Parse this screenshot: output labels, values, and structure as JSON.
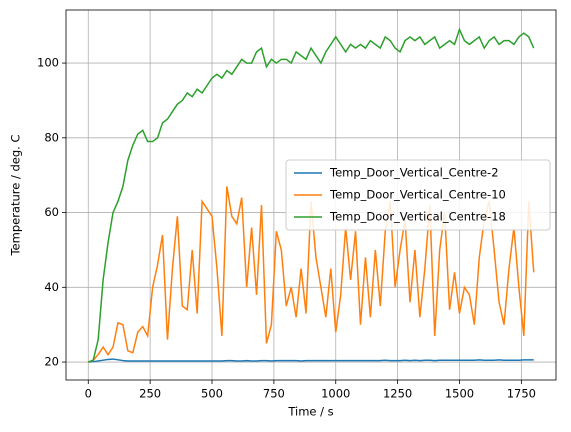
{
  "chart_data": {
    "type": "line",
    "xlabel": "Time / s",
    "ylabel": "Temperature / deg. C",
    "x": [
      0,
      20,
      40,
      60,
      80,
      100,
      120,
      140,
      160,
      180,
      200,
      220,
      240,
      260,
      280,
      300,
      320,
      340,
      360,
      380,
      400,
      420,
      440,
      460,
      480,
      500,
      520,
      540,
      560,
      580,
      600,
      620,
      640,
      660,
      680,
      700,
      720,
      740,
      760,
      780,
      800,
      820,
      840,
      860,
      880,
      900,
      920,
      940,
      960,
      980,
      1000,
      1020,
      1040,
      1060,
      1080,
      1100,
      1120,
      1140,
      1160,
      1180,
      1200,
      1220,
      1240,
      1260,
      1280,
      1300,
      1320,
      1340,
      1360,
      1380,
      1400,
      1420,
      1440,
      1460,
      1480,
      1500,
      1520,
      1540,
      1560,
      1580,
      1600,
      1620,
      1640,
      1660,
      1680,
      1700,
      1720,
      1740,
      1760,
      1780,
      1800
    ],
    "series": [
      {
        "name": "Temp_Door_Vertical_Centre-2",
        "color": "#1f77b4",
        "values": [
          20,
          20.1,
          20.3,
          20.5,
          20.7,
          20.8,
          20.6,
          20.4,
          20.3,
          20.3,
          20.3,
          20.3,
          20.3,
          20.3,
          20.3,
          20.3,
          20.3,
          20.3,
          20.3,
          20.3,
          20.3,
          20.3,
          20.3,
          20.3,
          20.3,
          20.3,
          20.3,
          20.3,
          20.4,
          20.4,
          20.3,
          20.3,
          20.4,
          20.3,
          20.3,
          20.4,
          20.4,
          20.3,
          20.4,
          20.4,
          20.4,
          20.4,
          20.4,
          20.3,
          20.4,
          20.4,
          20.4,
          20.4,
          20.4,
          20.4,
          20.4,
          20.4,
          20.4,
          20.4,
          20.4,
          20.4,
          20.4,
          20.4,
          20.4,
          20.4,
          20.5,
          20.4,
          20.4,
          20.4,
          20.5,
          20.4,
          20.5,
          20.4,
          20.5,
          20.5,
          20.4,
          20.5,
          20.5,
          20.5,
          20.5,
          20.5,
          20.5,
          20.5,
          20.5,
          20.6,
          20.5,
          20.5,
          20.5,
          20.6,
          20.5,
          20.5,
          20.5,
          20.5,
          20.6,
          20.6,
          20.6
        ]
      },
      {
        "name": "Temp_Door_Vertical_Centre-10",
        "color": "#ff7f0e",
        "values": [
          20,
          20.5,
          22,
          24,
          22,
          24,
          30.5,
          30,
          23,
          22.5,
          28,
          29.5,
          27,
          40,
          46,
          54,
          26,
          45,
          59,
          35,
          34,
          50,
          33,
          63,
          61,
          59,
          45,
          27,
          67,
          59,
          57,
          64,
          40,
          56,
          38,
          62,
          25,
          30,
          55,
          50,
          35,
          40,
          32,
          45,
          33,
          63,
          48,
          40,
          32,
          45,
          28,
          38,
          56,
          42,
          55,
          30,
          48,
          32,
          50,
          35,
          55,
          63,
          40,
          50,
          58,
          36,
          50,
          32,
          45,
          62,
          27,
          50,
          60,
          34,
          44,
          33,
          40,
          38,
          30,
          48,
          58,
          63,
          50,
          36,
          30,
          45,
          56,
          40,
          27,
          63,
          44
        ]
      },
      {
        "name": "Temp_Door_Vertical_Centre-18",
        "color": "#2ca02c",
        "values": [
          20,
          20.5,
          26,
          42,
          52,
          60,
          63,
          67,
          74,
          78,
          81,
          82,
          79,
          79,
          80,
          84,
          85,
          87,
          89,
          90,
          92,
          91,
          93,
          92,
          94,
          96,
          97,
          96,
          98,
          97,
          99,
          101,
          100,
          100,
          103,
          104,
          99,
          101,
          100,
          101,
          101,
          100,
          103,
          102,
          101,
          104,
          102,
          100,
          103,
          105,
          107,
          105,
          103,
          105,
          104,
          105,
          104,
          106,
          105,
          104,
          107,
          106,
          104,
          103,
          106,
          107,
          106,
          107,
          105,
          106,
          107,
          104,
          105,
          106,
          105,
          109,
          106,
          105,
          106,
          107,
          104,
          106,
          107,
          105,
          106,
          106,
          105,
          107,
          108,
          107,
          104
        ]
      }
    ],
    "xlim": [
      -90,
      1890
    ],
    "ylim": [
      15.2,
      114.2
    ],
    "xticks": [
      0,
      250,
      500,
      750,
      1000,
      1250,
      1500,
      1750
    ],
    "yticks": [
      20,
      40,
      60,
      80,
      100
    ],
    "grid": true,
    "legend": "center right"
  }
}
